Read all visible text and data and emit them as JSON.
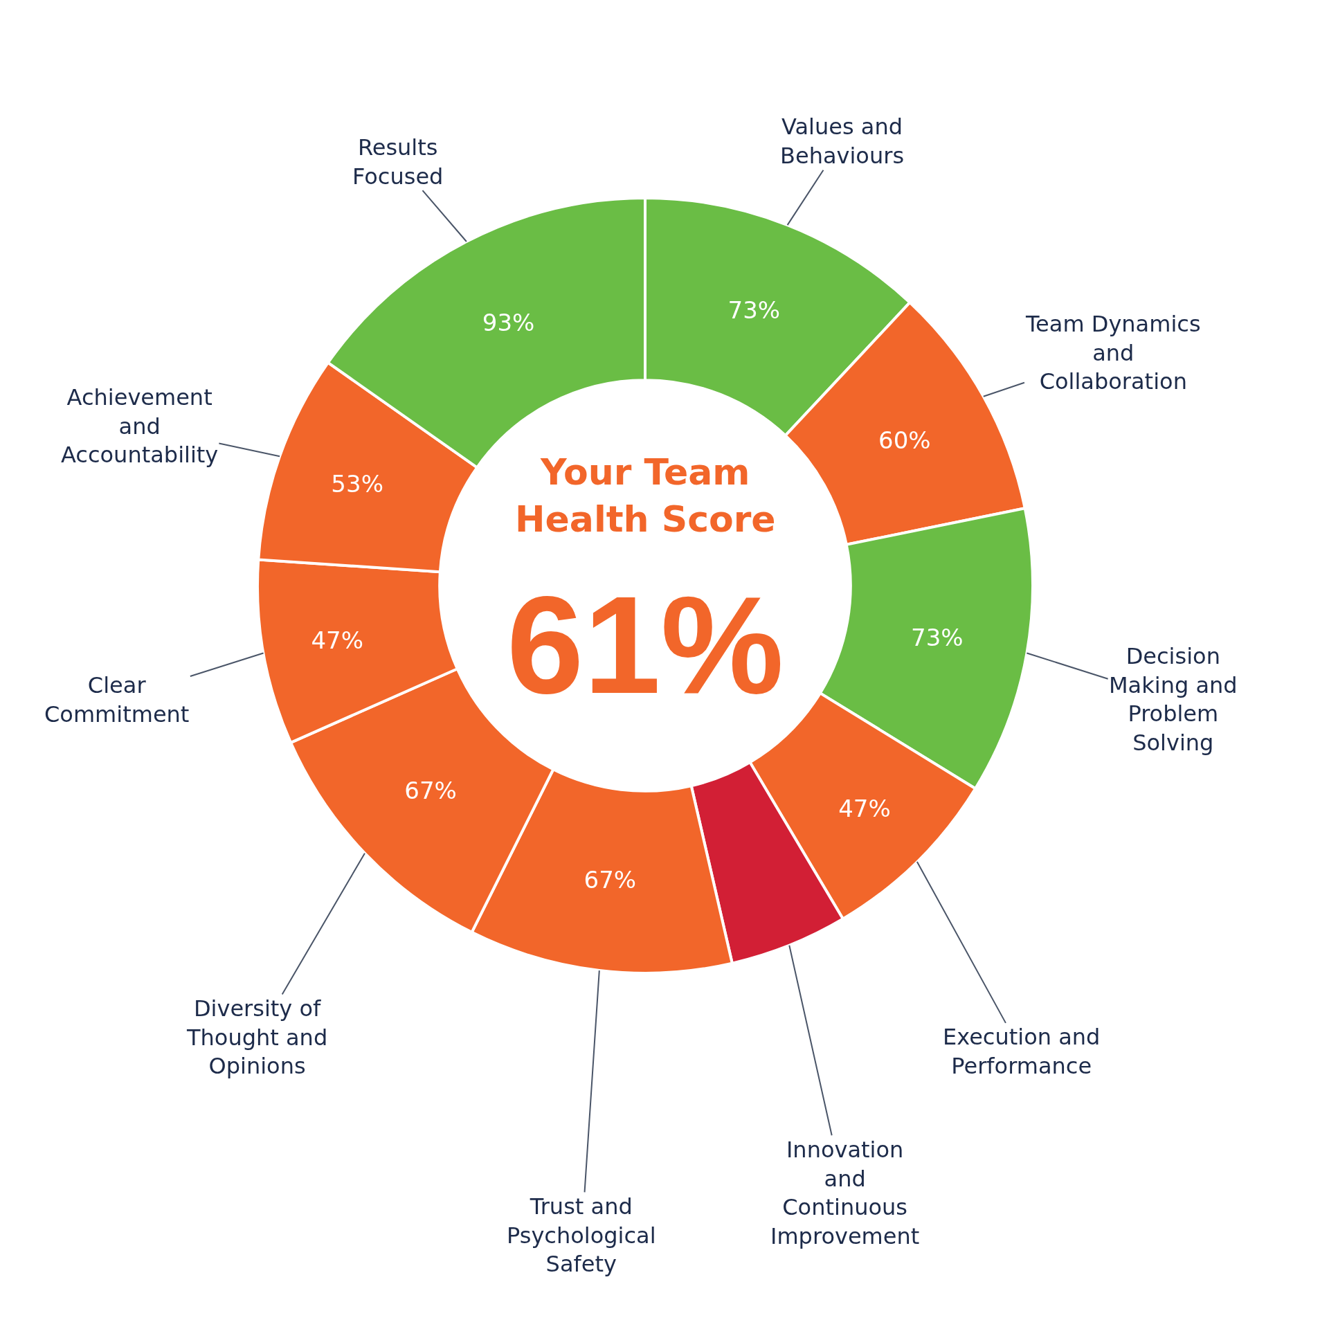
{
  "chart_data": {
    "type": "donut",
    "title": "Your Team Health Score",
    "categories": [
      "Values and Behaviours",
      "Team Dynamics and Collaboration",
      "Decision Making and Problem Solving",
      "Execution and Performance",
      "Innovation and Continuous Improvement",
      "Trust and Psychological Safety",
      "Diversity of Thought and Opinions",
      "Clear Commitment",
      "Achievement and Accountability",
      "Results Focused"
    ],
    "values": [
      73,
      60,
      73,
      47,
      30,
      67,
      67,
      47,
      53,
      93
    ],
    "value_labels": [
      "73%",
      "60%",
      "73%",
      "47%",
      null,
      "67%",
      "67%",
      "47%",
      "53%",
      "93%"
    ],
    "colors": [
      "#6abd45",
      "#f2662a",
      "#6abd45",
      "#f2662a",
      "#d21f35",
      "#f2662a",
      "#f2662a",
      "#f2662a",
      "#f2662a",
      "#6abd45"
    ],
    "annotations": [
      "61%"
    ]
  }
}
